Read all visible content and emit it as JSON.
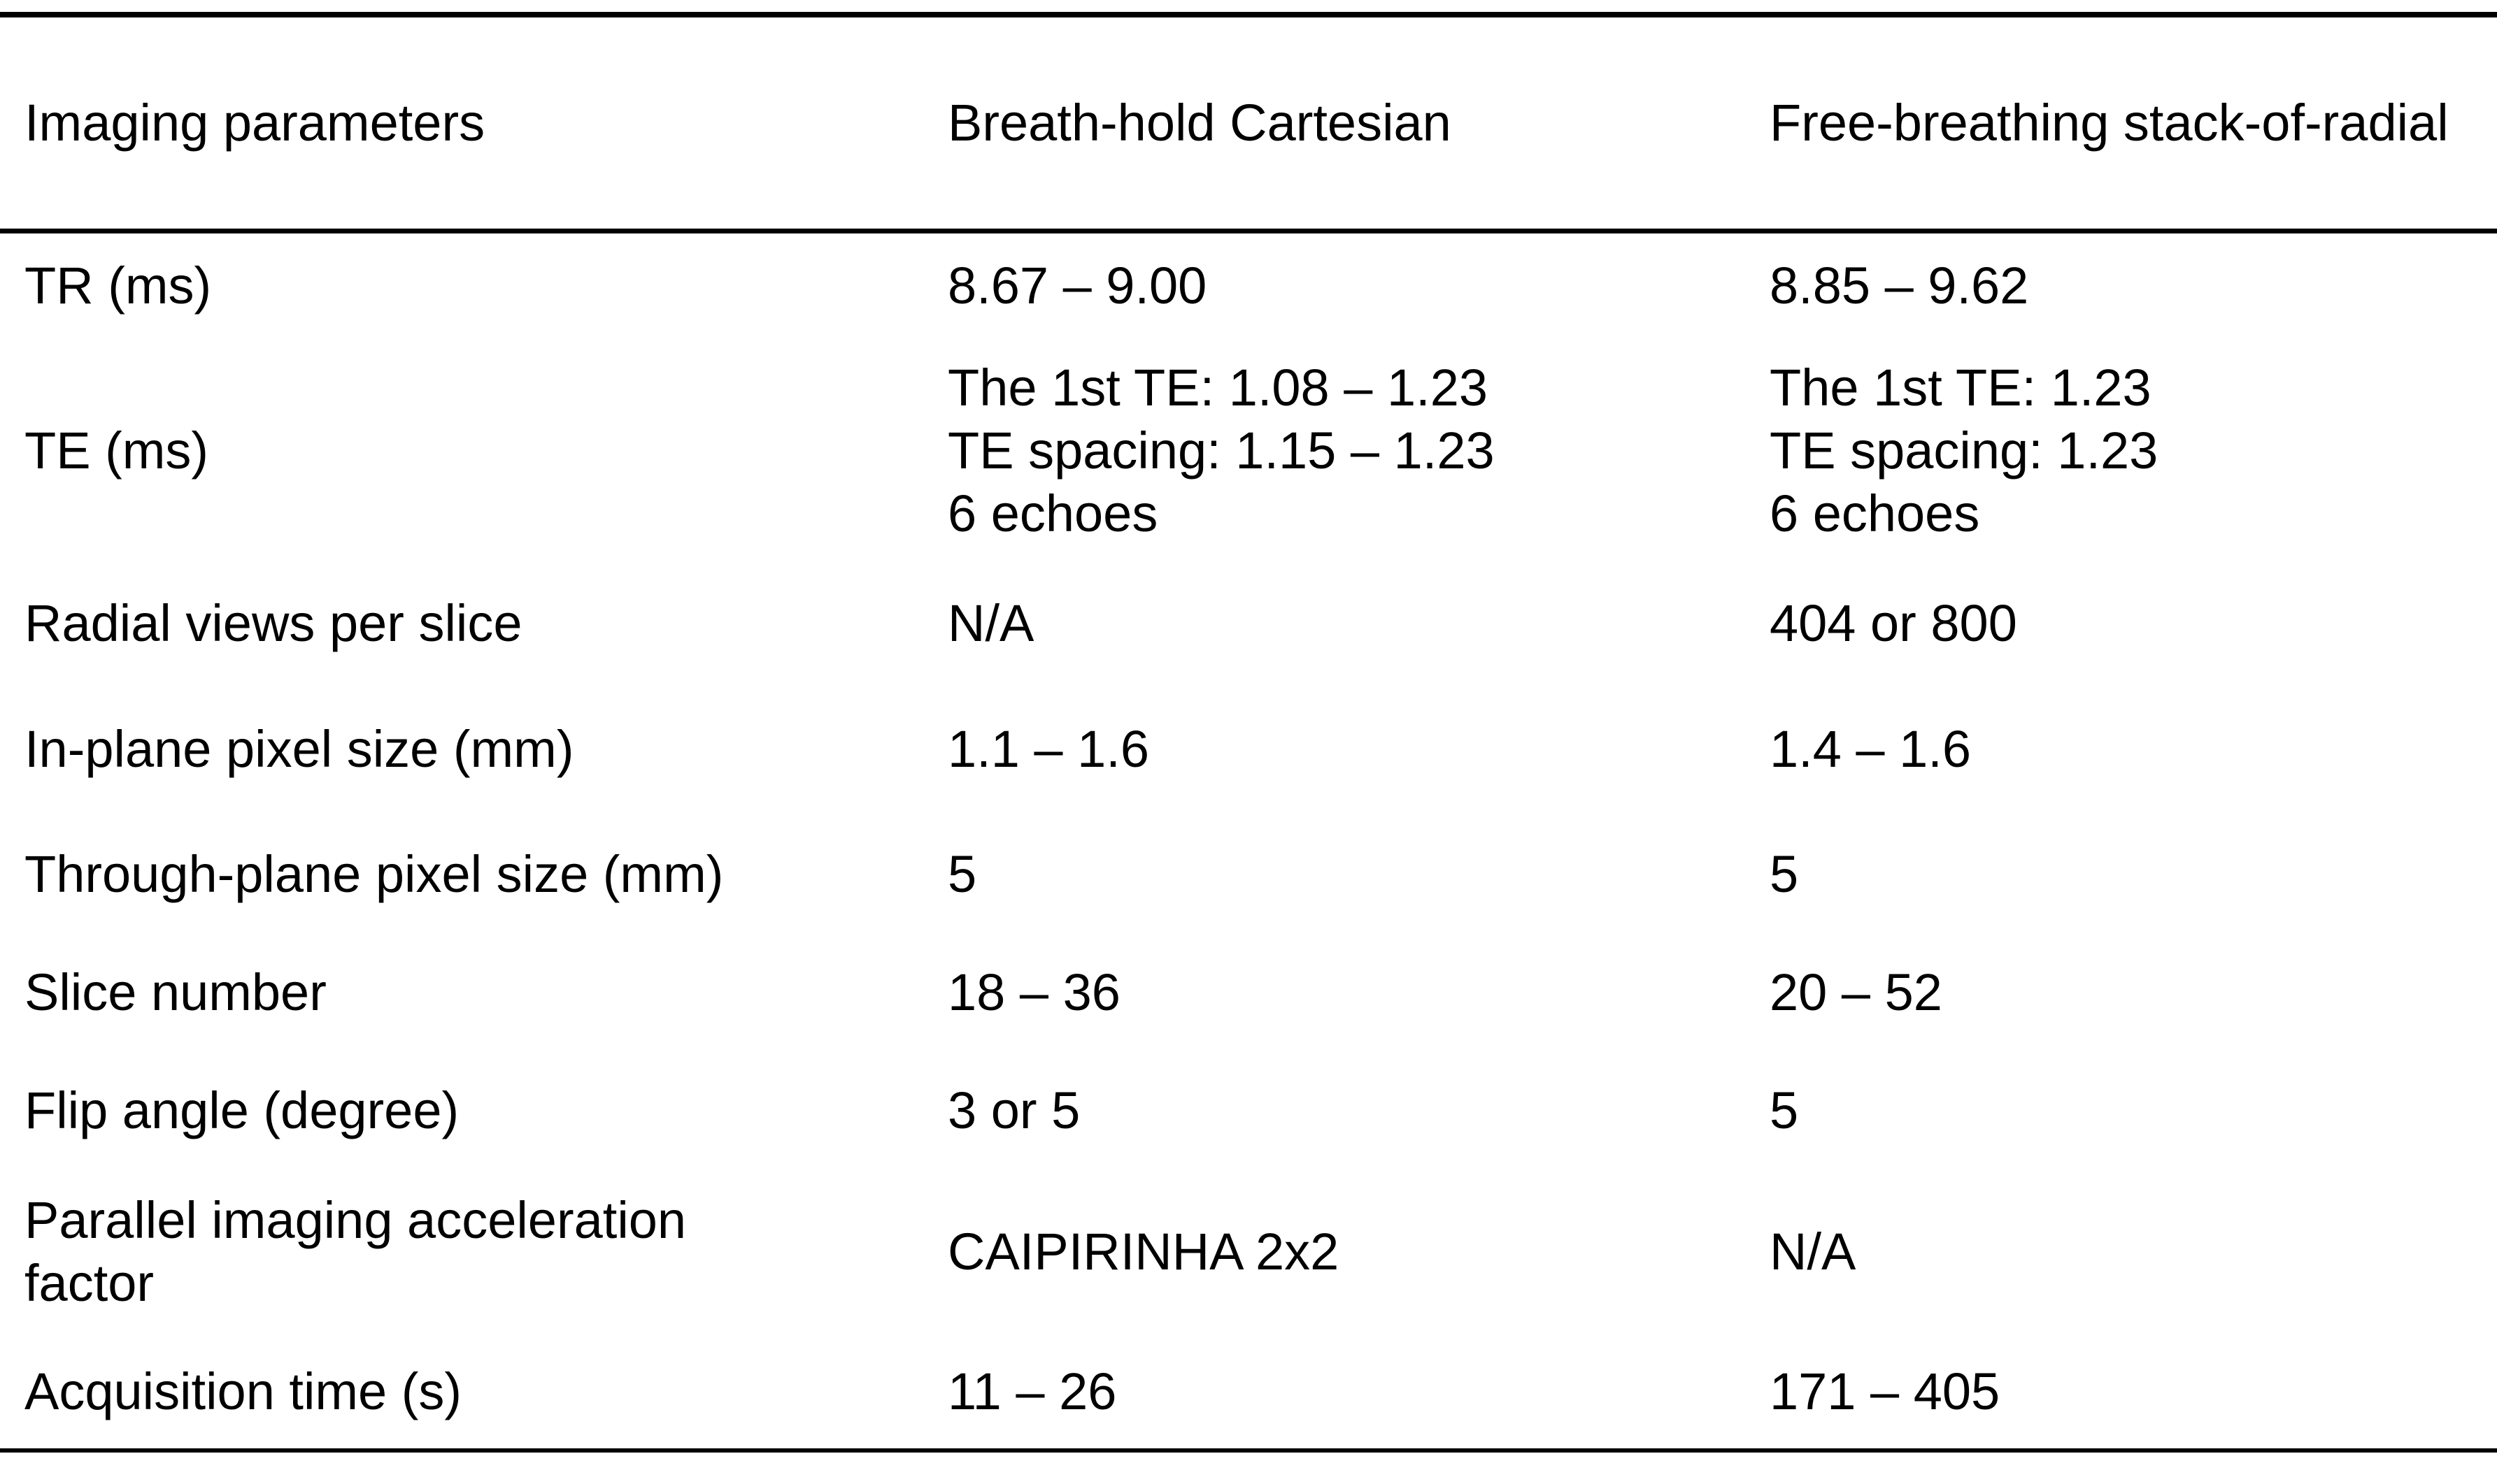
{
  "colors": {
    "text": "#000000",
    "background": "#ffffff",
    "rule": "#000000"
  },
  "table": {
    "header": {
      "parameter": "Imaging parameters",
      "cartesian": "Breath-hold Cartesian",
      "radial": "Free-breathing stack-of-radial"
    },
    "rows": [
      {
        "param": "TR (ms)",
        "cartesian": "8.67 – 9.00",
        "radial": "8.85 – 9.62"
      },
      {
        "param": "TE (ms)",
        "cartesian": "The 1st TE: 1.08 – 1.23\nTE spacing: 1.15 – 1.23\n6 echoes",
        "radial": "The 1st TE: 1.23\nTE spacing: 1.23\n6 echoes"
      },
      {
        "param": "Radial views per slice",
        "cartesian": "N/A",
        "radial": "404 or 800"
      },
      {
        "param": "In-plane pixel size (mm)",
        "cartesian": "1.1 – 1.6",
        "radial": "1.4 – 1.6"
      },
      {
        "param": "Through-plane pixel size (mm)",
        "cartesian": "5",
        "radial": "5"
      },
      {
        "param": "Slice number",
        "cartesian": "18 – 36",
        "radial": "20 – 52"
      },
      {
        "param": "Flip angle (degree)",
        "cartesian": "3 or 5",
        "radial": "5"
      },
      {
        "param": "Parallel imaging acceleration\nfactor",
        "cartesian": "CAIPIRINHA 2x2",
        "radial": "N/A"
      },
      {
        "param": "Acquisition time (s)",
        "cartesian": "11 – 26",
        "radial": "171 – 405"
      }
    ]
  }
}
